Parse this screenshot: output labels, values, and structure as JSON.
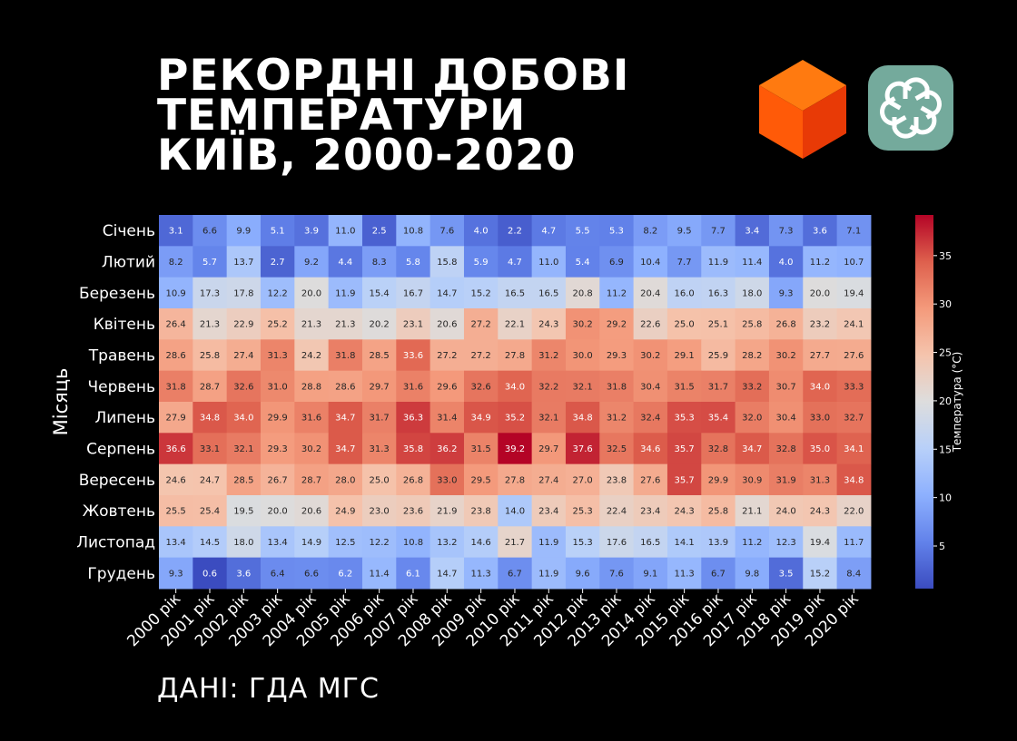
{
  "title_lines": [
    "РЕКОРДНІ ДОБОВІ",
    "ТЕМПЕРАТУРИ",
    "КИЇВ, 2000-2020"
  ],
  "source": "ДАНІ: ГДА МГС",
  "icons": {
    "cube": "orange-cube-icon",
    "gpt": "openai-logo-icon"
  },
  "colors": {
    "background": "#000000",
    "logo_bg": "#74aa9c",
    "cube_top": "#ff7a10",
    "cube_left": "#ff5a08",
    "cube_right": "#e83a06"
  },
  "chart_data": {
    "type": "heatmap",
    "ylabel": "Місяць",
    "colorbar_label": "Температура (°C)",
    "colorbar_ticks": [
      5,
      10,
      15,
      20,
      25,
      30,
      35
    ],
    "colormap": "coolwarm",
    "vmin": 0.6,
    "vmax": 39.2,
    "x": [
      "2000 рік",
      "2001 рік",
      "2002 рік",
      "2003 рік",
      "2004 рік",
      "2005 рік",
      "2006 рік",
      "2007 рік",
      "2008 рік",
      "2009 рік",
      "2010 рік",
      "2011 рік",
      "2012 рік",
      "2013 рік",
      "2014 рік",
      "2015 рік",
      "2016 рік",
      "2017 рік",
      "2018 рік",
      "2019 рік",
      "2020 рік"
    ],
    "y": [
      "Січень",
      "Лютий",
      "Березень",
      "Квітень",
      "Травень",
      "Червень",
      "Липень",
      "Серпень",
      "Вересень",
      "Жовтень",
      "Листопад",
      "Грудень"
    ],
    "values": [
      [
        3.1,
        6.6,
        9.9,
        5.1,
        3.9,
        11.0,
        2.5,
        10.8,
        7.6,
        4.0,
        2.2,
        4.7,
        5.5,
        5.3,
        8.2,
        9.5,
        7.7,
        3.4,
        7.3,
        3.6,
        7.1
      ],
      [
        8.2,
        5.7,
        13.7,
        2.7,
        9.2,
        4.4,
        8.3,
        5.8,
        15.8,
        5.9,
        4.7,
        11.0,
        5.4,
        6.9,
        10.4,
        7.7,
        11.9,
        11.4,
        4.0,
        11.2,
        10.7
      ],
      [
        10.9,
        17.3,
        17.8,
        12.2,
        20.0,
        11.9,
        15.4,
        16.7,
        14.7,
        15.2,
        16.5,
        16.5,
        20.8,
        11.2,
        20.4,
        16.0,
        16.3,
        18.0,
        9.3,
        20.0,
        19.4
      ],
      [
        26.4,
        21.3,
        22.9,
        25.2,
        21.3,
        21.3,
        20.2,
        23.1,
        20.6,
        27.2,
        22.1,
        24.3,
        30.2,
        29.2,
        22.6,
        25.0,
        25.1,
        25.8,
        26.8,
        23.2,
        24.1
      ],
      [
        28.6,
        25.8,
        27.4,
        31.3,
        24.2,
        31.8,
        28.5,
        33.6,
        27.2,
        27.2,
        27.8,
        31.2,
        30.0,
        29.3,
        30.2,
        29.1,
        25.9,
        28.2,
        30.2,
        27.7,
        27.6
      ],
      [
        31.8,
        28.7,
        32.6,
        31.0,
        28.8,
        28.6,
        29.7,
        31.6,
        29.6,
        32.6,
        34.0,
        32.2,
        32.1,
        31.8,
        30.4,
        31.5,
        31.7,
        33.2,
        30.7,
        34.0,
        33.3
      ],
      [
        27.9,
        34.8,
        34.0,
        29.9,
        31.6,
        34.7,
        31.7,
        36.3,
        31.4,
        34.9,
        35.2,
        32.1,
        34.8,
        31.2,
        32.4,
        35.3,
        35.4,
        32.0,
        30.4,
        33.0,
        32.7
      ],
      [
        36.6,
        33.1,
        32.1,
        29.3,
        30.2,
        34.7,
        31.3,
        35.8,
        36.2,
        31.5,
        39.2,
        29.7,
        37.6,
        32.5,
        34.6,
        35.7,
        32.8,
        34.7,
        32.8,
        35.0,
        34.1
      ],
      [
        24.6,
        24.7,
        28.5,
        26.7,
        28.7,
        28.0,
        25.0,
        26.8,
        33.0,
        29.5,
        27.8,
        27.4,
        27.0,
        23.8,
        27.6,
        35.7,
        29.9,
        30.9,
        31.9,
        31.3,
        34.8
      ],
      [
        25.5,
        25.4,
        19.5,
        20.0,
        20.6,
        24.9,
        23.0,
        23.6,
        21.9,
        23.8,
        14.0,
        23.4,
        25.3,
        22.4,
        23.4,
        24.3,
        25.8,
        21.1,
        24.0,
        24.3,
        22.0
      ],
      [
        13.4,
        14.5,
        18.0,
        13.4,
        14.9,
        12.5,
        12.2,
        10.8,
        13.2,
        14.6,
        21.7,
        11.9,
        15.3,
        17.6,
        16.5,
        14.1,
        13.9,
        11.2,
        12.3,
        19.4,
        11.7
      ],
      [
        9.3,
        0.6,
        3.6,
        6.4,
        6.6,
        6.2,
        11.4,
        6.1,
        14.7,
        11.3,
        6.7,
        11.9,
        9.6,
        7.6,
        9.1,
        11.3,
        6.7,
        9.8,
        3.5,
        15.2,
        8.4
      ]
    ]
  }
}
